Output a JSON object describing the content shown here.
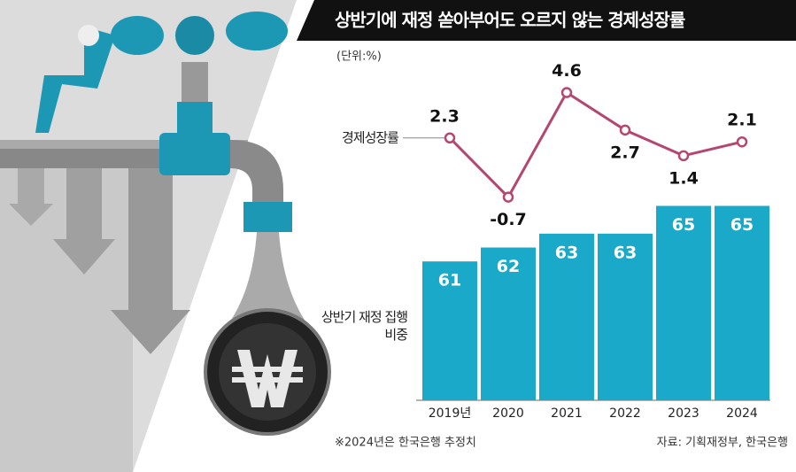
{
  "chart_data": {
    "type": "bar",
    "title": "상반기에 재정 쏟아부어도 오르지 않는 경제성장률",
    "unit_label": "(단위:%)",
    "categories": [
      "2019년",
      "2020",
      "2021",
      "2022",
      "2023",
      "2024"
    ],
    "series": [
      {
        "name": "상반기 재정 집행 비중",
        "type": "bar",
        "color": "#1ba9c9",
        "values": [
          61,
          62,
          63,
          63,
          65,
          65
        ]
      },
      {
        "name": "경제성장률",
        "type": "line",
        "axis": "y2",
        "color": "#b5466f",
        "values": [
          2.3,
          -0.7,
          4.6,
          2.7,
          1.4,
          2.1
        ]
      }
    ],
    "ylim": [
      51,
      76
    ],
    "y2lim": [
      -11,
      6.6
    ],
    "note": "※2024년은 한국은행 추정치",
    "source": "자료: 기획재정부, 한국은행"
  }
}
